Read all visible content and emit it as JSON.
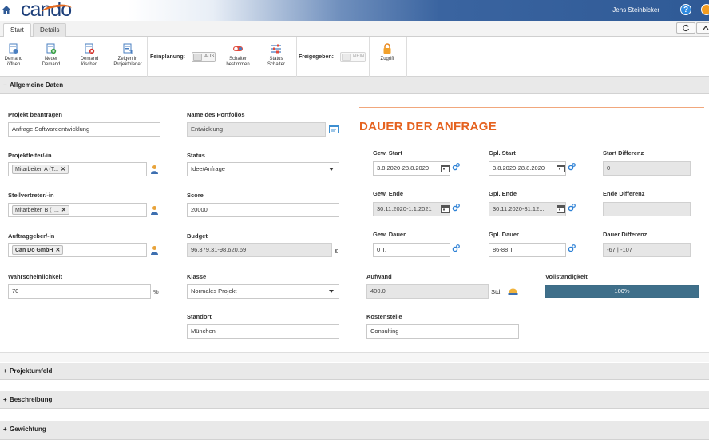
{
  "header": {
    "logo_text": "cando",
    "user_name": "Jens Steinbicker",
    "help_label": "?"
  },
  "tabs": [
    {
      "label": "Start",
      "active": true
    },
    {
      "label": "Details",
      "active": false
    }
  ],
  "toolbar": {
    "buttons": [
      {
        "label": "Demand öffnen",
        "icon": "demand-open-icon"
      },
      {
        "label": "Neuer Demand",
        "icon": "new-demand-icon"
      },
      {
        "label": "Demand löschen",
        "icon": "delete-demand-icon"
      },
      {
        "label": "Zeigen in Projektplaner",
        "icon": "show-in-planner-icon"
      },
      {
        "label": "Schalter bestimmen",
        "icon": "switch-define-icon"
      },
      {
        "label": "Status Schalter",
        "icon": "status-switch-icon"
      },
      {
        "label": "Zugriff",
        "icon": "lock-icon"
      }
    ],
    "feinplanung_label": "Feinplanung:",
    "feinplanung_value": "AUS",
    "freigegeben_label": "Freigegeben:",
    "freigegeben_value": "NEIN"
  },
  "sections": {
    "allgemeine": "Allgemeine Daten",
    "projektumfeld": "Projektumfeld",
    "beschreibung": "Beschreibung",
    "gewichtung": "Gewichtung"
  },
  "form": {
    "projekt_beantragen": {
      "label": "Projekt beantragen",
      "value": "Anfrage Softwareentwicklung"
    },
    "projektleiter": {
      "label": "Projektleiter/-in",
      "chip": "Mitarbeiter, A (T..."
    },
    "stellvertreter": {
      "label": "Stellvertreter/-in",
      "chip": "Mitarbeiter, B (T..."
    },
    "auftraggeber": {
      "label": "Auftraggeber/-in",
      "chip": "Can Do GmbH"
    },
    "wahrscheinlichkeit": {
      "label": "Wahrscheinlichkeit",
      "value": "70",
      "unit": "%"
    },
    "portfolio": {
      "label": "Name des Portfolios",
      "value": "Entwicklung"
    },
    "status": {
      "label": "Status",
      "value": "Idee/Anfrage"
    },
    "score": {
      "label": "Score",
      "value": "20000"
    },
    "budget": {
      "label": "Budget",
      "value": "96.379,31-98.620,69",
      "unit": "€"
    },
    "klasse": {
      "label": "Klasse",
      "value": "Normales Projekt"
    },
    "standort": {
      "label": "Standort",
      "value": "München"
    },
    "aufwand": {
      "label": "Aufwand",
      "value": "400.0",
      "unit": "Std."
    },
    "kostenstelle": {
      "label": "Kostenstelle",
      "value": "Consulting"
    },
    "vollstaendigkeit": {
      "label": "Vollständigkeit",
      "text": "100%",
      "percent": 100
    }
  },
  "dauer": {
    "title": "DAUER DER ANFRAGE",
    "gew_start": {
      "label": "Gew. Start",
      "value": "3.8.2020-28.8.2020"
    },
    "gpl_start": {
      "label": "Gpl. Start",
      "value": "3.8.2020-28.8.2020"
    },
    "start_diff": {
      "label": "Start Differenz",
      "value": "0"
    },
    "gew_ende": {
      "label": "Gew. Ende",
      "value": "30.11.2020-1.1.2021"
    },
    "gpl_ende": {
      "label": "Gpl. Ende",
      "value": "30.11.2020-31.12...."
    },
    "ende_diff": {
      "label": "Ende Differenz",
      "value": ""
    },
    "gew_dauer": {
      "label": "Gew. Dauer",
      "value": "0 T."
    },
    "gpl_dauer": {
      "label": "Gpl. Dauer",
      "value": "86-88 T"
    },
    "dauer_diff": {
      "label": "Dauer Differenz",
      "value": "-67 | -107"
    }
  },
  "colors": {
    "accent_orange": "#e5621f",
    "header_blue": "#2f5a96",
    "progress_fill": "#3f6f8a"
  }
}
